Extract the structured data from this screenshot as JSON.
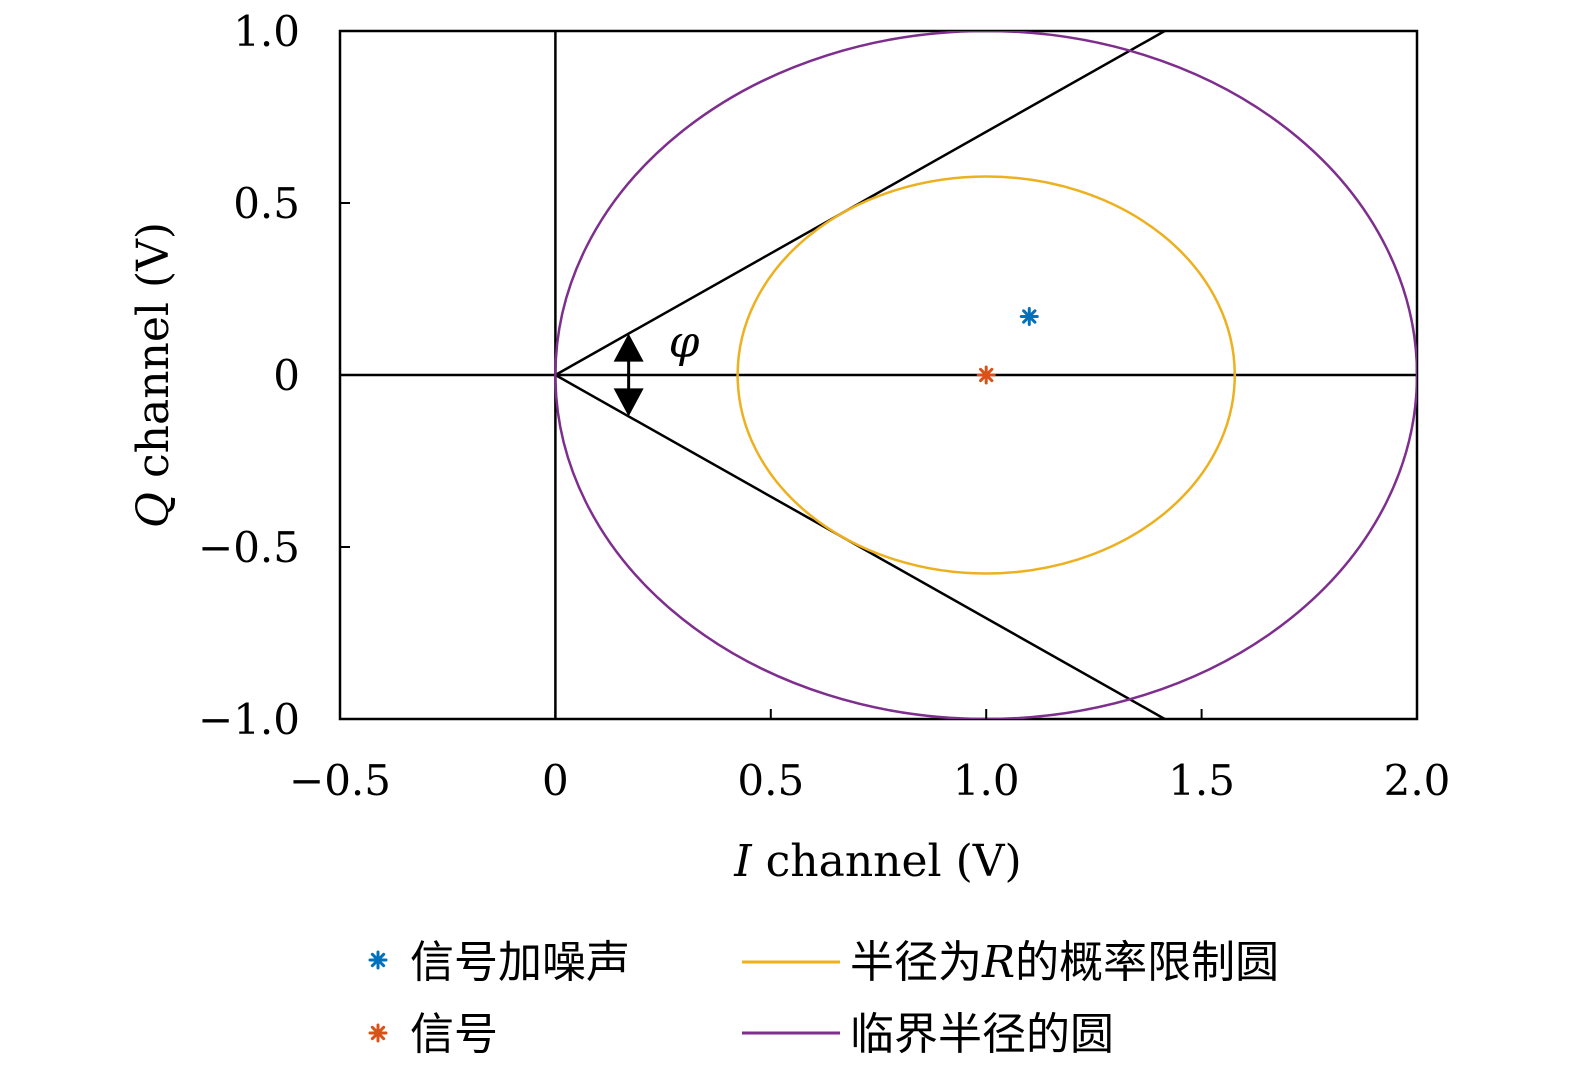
{
  "chart_data": {
    "type": "scatter",
    "xlabel_italic": "I",
    "xlabel_rest": " channel (V)",
    "ylabel_italic": "Q",
    "ylabel_rest": " channel (V)",
    "xlim": [
      -0.5,
      2.0
    ],
    "ylim": [
      -1.0,
      1.0
    ],
    "xticks": [
      -0.5,
      0,
      0.5,
      1.0,
      1.5,
      2.0
    ],
    "xtick_labels": [
      "−0.5",
      "0",
      "0.5",
      "1.0",
      "1.5",
      "2.0"
    ],
    "yticks": [
      -1.0,
      -0.5,
      0,
      0.5,
      1.0
    ],
    "ytick_labels": [
      "−1.0",
      "−0.5",
      "0",
      "0.5",
      "1.0"
    ],
    "reference_lines": {
      "horizontal_y": 0,
      "vertical_x": 0,
      "ray_slope": 0.707
    },
    "circles": [
      {
        "name": "临界半径的圆",
        "center": [
          1.0,
          0
        ],
        "radius": 1.0,
        "color": "#7e2f8e"
      },
      {
        "name": "半径为R的概率限制圆",
        "center": [
          1.0,
          0
        ],
        "radius": 0.577,
        "color": "#edb120"
      }
    ],
    "points": [
      {
        "name": "信号加噪声",
        "x": 1.1,
        "y": 0.17,
        "color": "#0072bd"
      },
      {
        "name": "信号",
        "x": 1.0,
        "y": 0,
        "color": "#d95319"
      }
    ],
    "annotation": {
      "symbol": "φ",
      "arrow_x": 0.17
    },
    "grid": false,
    "legend_position": "bottom"
  },
  "legend": {
    "items": [
      {
        "label": "信号加噪声",
        "marker": "asterisk",
        "color": "#0072bd"
      },
      {
        "label": "信号",
        "marker": "asterisk",
        "color": "#d95319"
      },
      {
        "label_prefix": "半径为",
        "label_italic": "R",
        "label_suffix": "的概率限制圆",
        "marker": "line",
        "color": "#edb120"
      },
      {
        "label": "临界半径的圆",
        "marker": "line",
        "color": "#7e2f8e"
      }
    ]
  }
}
